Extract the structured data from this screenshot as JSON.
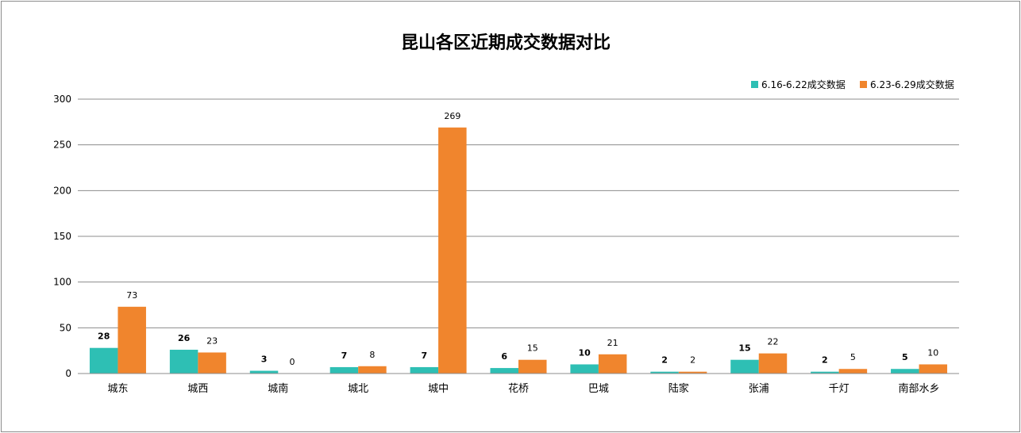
{
  "colors": {
    "series1": "#2EBFB4",
    "series2": "#F0852D",
    "grid": "#8c8c8c"
  },
  "chart_data": {
    "type": "bar",
    "title": "昆山各区近期成交数据对比",
    "xlabel": "",
    "ylabel": "",
    "ylim": [
      0,
      300
    ],
    "yticks": [
      "0",
      "50",
      "100",
      "150",
      "200",
      "250",
      "300"
    ],
    "grid": true,
    "legend": "top-right",
    "categories": [
      "城东",
      "城西",
      "城南",
      "城北",
      "城中",
      "花桥",
      "巴城",
      "陆家",
      "张浦",
      "千灯",
      "南部水乡"
    ],
    "series": [
      {
        "name": "6.16-6.22成交数据",
        "values": [
          28,
          26,
          3,
          7,
          7,
          6,
          10,
          2,
          15,
          2,
          5
        ]
      },
      {
        "name": "6.23-6.29成交数据",
        "values": [
          73,
          23,
          0,
          8,
          269,
          15,
          21,
          2,
          22,
          5,
          10
        ]
      }
    ]
  }
}
